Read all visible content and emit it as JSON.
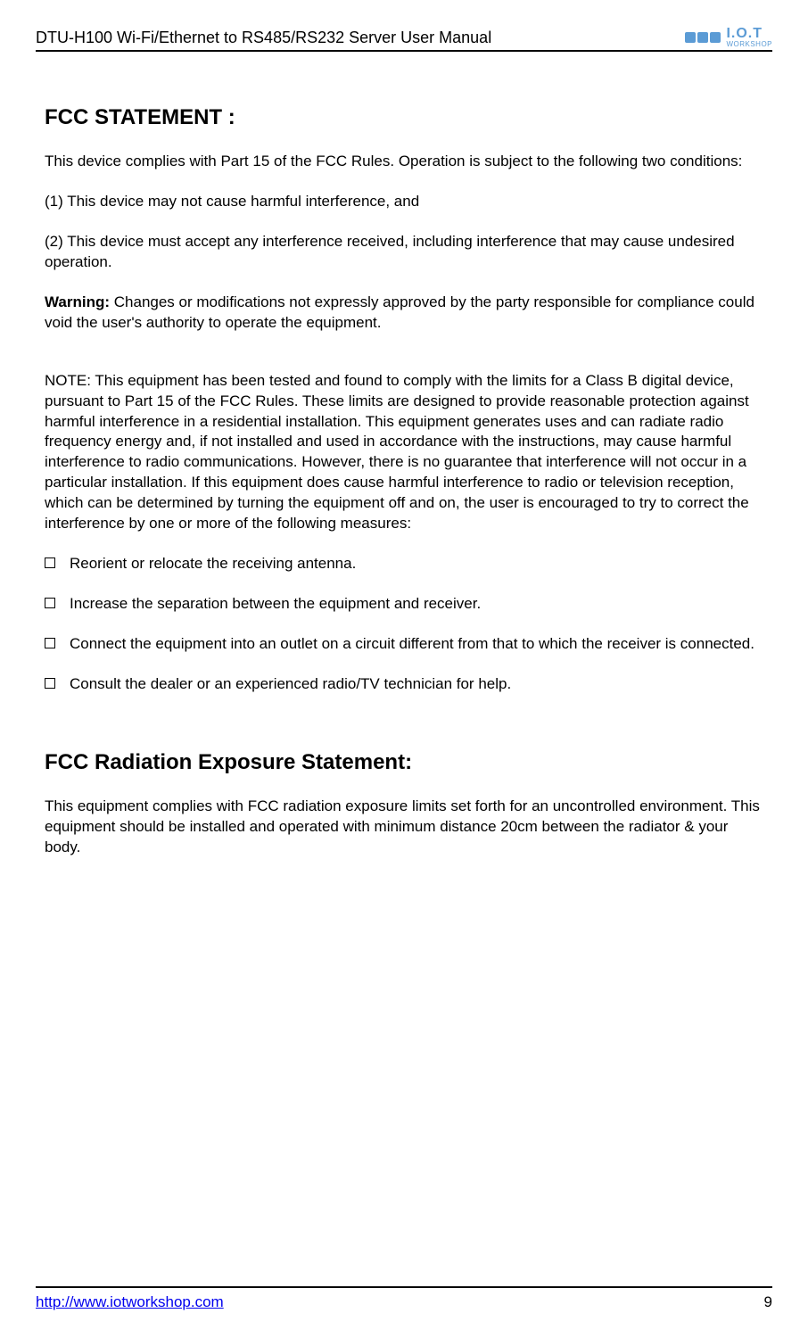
{
  "header": {
    "title": "DTU-H100  Wi-Fi/Ethernet to RS485/RS232  Server User Manual",
    "logo_main": "I.O.T",
    "logo_sub": "WORKSHOP"
  },
  "section1": {
    "heading": "FCC STATEMENT :",
    "p1": "This device complies with Part 15 of the FCC Rules. Operation is subject to the following two conditions:",
    "p2": "(1) This device may not cause harmful interference, and",
    "p3": "(2) This device must accept any interference received, including interference that may cause undesired operation.",
    "warning_label": "Warning:",
    "warning_text": " Changes or modifications not expressly approved by the party responsible for compliance could void the user's authority to operate the equipment.",
    "note": "NOTE: This equipment has been tested and found to comply with the limits for a Class B digital device, pursuant to Part 15 of the FCC Rules. These limits are designed to provide reasonable protection against harmful interference in a residential installation. This equipment generates uses and can radiate radio frequency energy and, if not installed and used in accordance with the instructions, may cause harmful interference to radio communications. However, there is no guarantee that interference will not occur in a particular installation. If this equipment does cause harmful interference to radio or television reception, which can be determined by turning the equipment off and on, the user is encouraged to try to correct the interference by one or more of the following measures:",
    "bullets": [
      "Reorient or relocate the receiving antenna.",
      "Increase the separation between the equipment and receiver.",
      "Connect the equipment into an outlet on a circuit different from that to which the receiver is connected.",
      "Consult the dealer or an experienced radio/TV technician for help."
    ]
  },
  "section2": {
    "heading": "FCC Radiation Exposure Statement:",
    "p1": "This equipment complies with FCC radiation exposure limits set forth for an uncontrolled environment. This equipment should be installed and operated with minimum distance 20cm between the radiator & your body."
  },
  "footer": {
    "url": "http://www.iotworkshop.com",
    "page": "9"
  }
}
